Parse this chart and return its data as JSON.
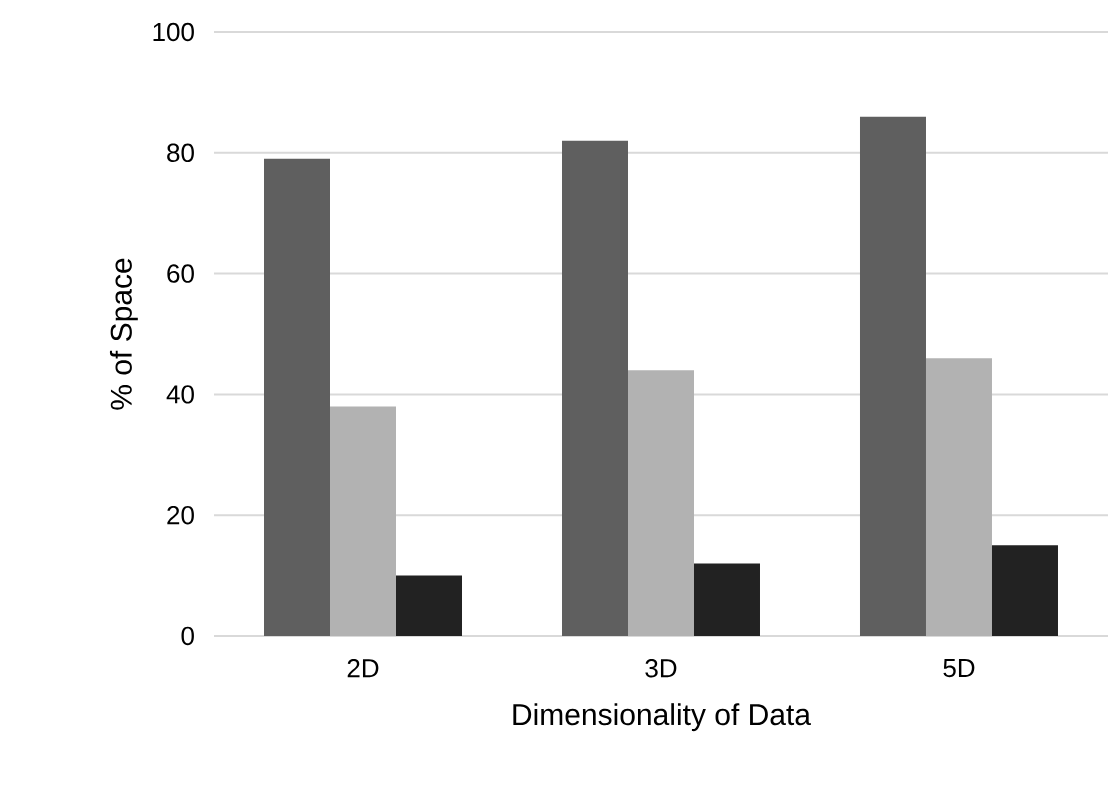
{
  "chart_data": {
    "type": "bar",
    "xlabel": "Dimensionality of Data",
    "ylabel": "% of Space",
    "categories": [
      "2D",
      "3D",
      "5D"
    ],
    "series": [
      {
        "color": "#5f5f5f",
        "values": [
          79,
          82,
          86
        ]
      },
      {
        "color": "#b2b2b2",
        "values": [
          38,
          44,
          46
        ]
      },
      {
        "color": "#222222",
        "values": [
          10,
          12,
          15
        ]
      }
    ],
    "ylim": [
      0,
      100
    ],
    "yticks": [
      0,
      20,
      40,
      60,
      80,
      100
    ],
    "grid": "y"
  }
}
